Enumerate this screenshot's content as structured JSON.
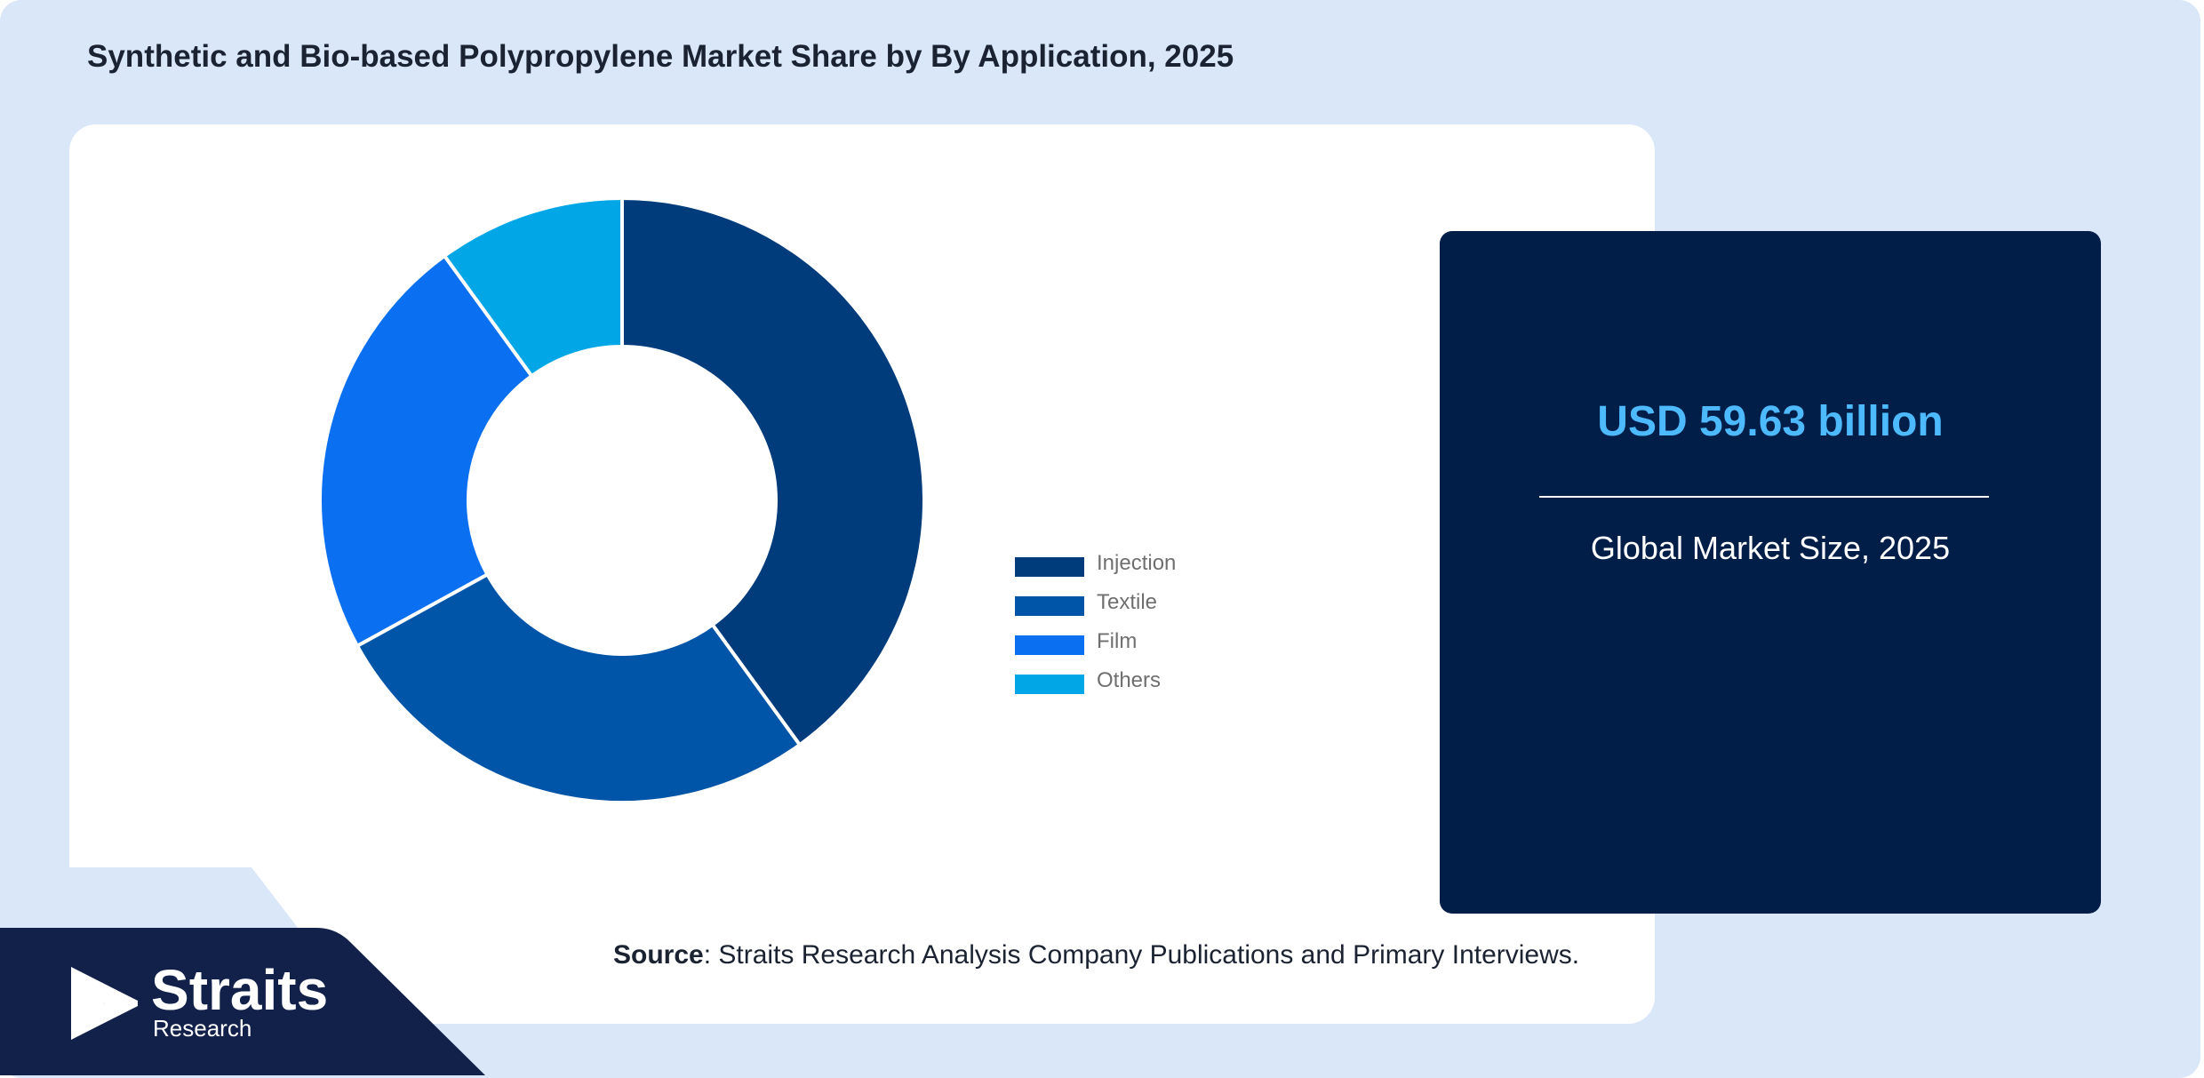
{
  "title": "Synthetic and Bio-based Polypropylene Market Share by By Application, 2025",
  "chart_data": {
    "type": "pie",
    "donut": true,
    "categories": [
      "Injection",
      "Textile",
      "Film",
      "Others"
    ],
    "values": [
      40,
      27,
      23,
      10
    ],
    "colors": [
      "#003b7b",
      "#0055a8",
      "#0a6ff0",
      "#00a6e6"
    ],
    "legend_position": "right"
  },
  "info_box": {
    "value": "USD 59.63 billion",
    "label": "Global Market Size, 2025"
  },
  "source": {
    "label": "Source",
    "text": ": Straits Research Analysis Company Publications and Primary Interviews."
  },
  "brand": {
    "name": "Straits",
    "sub": "Research"
  }
}
